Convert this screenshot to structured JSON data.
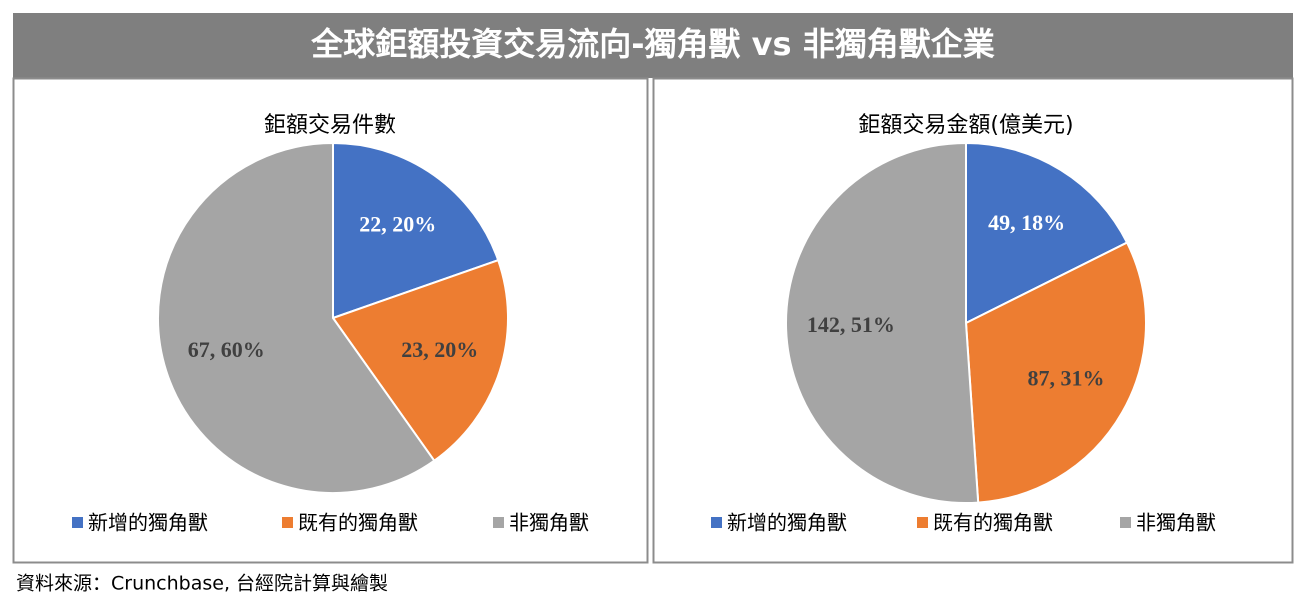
{
  "title": "全球鉅額投資交易流向-獨角獸 vs 非獨角獸企業",
  "source": "資料來源：Crunchbase, 台經院計算與繪製",
  "chart_data": [
    {
      "type": "pie",
      "title": "鉅額交易件數",
      "categories": [
        "新增的獨角獸",
        "既有的獨角獸",
        "非獨角獸"
      ],
      "values": [
        22,
        23,
        67
      ],
      "value_labels": [
        "22, 20%",
        "23, 20%",
        "67, 60%"
      ],
      "colors": [
        "#4472c4",
        "#ed7d31",
        "#a5a5a5"
      ]
    },
    {
      "type": "pie",
      "title": "鉅額交易金額(億美元)",
      "categories": [
        "新增的獨角獸",
        "既有的獨角獸",
        "非獨角獸"
      ],
      "values": [
        49,
        87,
        142
      ],
      "value_labels": [
        "49, 18%",
        "87, 31%",
        "142, 51%"
      ],
      "colors": [
        "#4472c4",
        "#ed7d31",
        "#a5a5a5"
      ]
    }
  ]
}
